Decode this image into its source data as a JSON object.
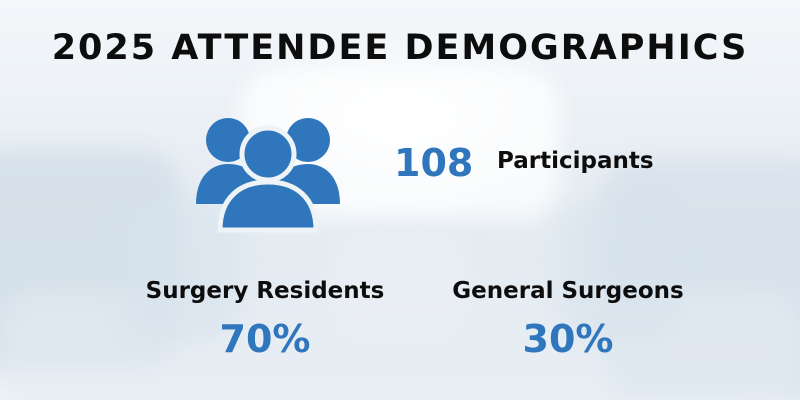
{
  "title": "2025 ATTENDEE DEMOGRAPHICS",
  "participants": {
    "count": "108",
    "label": "Participants",
    "icon": "people-group-icon"
  },
  "breakdown": [
    {
      "label": "Surgery Residents",
      "value": "70%"
    },
    {
      "label": "General Surgeons",
      "value": "30%"
    }
  ],
  "colors": {
    "accent": "#2f76bd",
    "text": "#0d0d0d",
    "background": "#eef3f7"
  }
}
